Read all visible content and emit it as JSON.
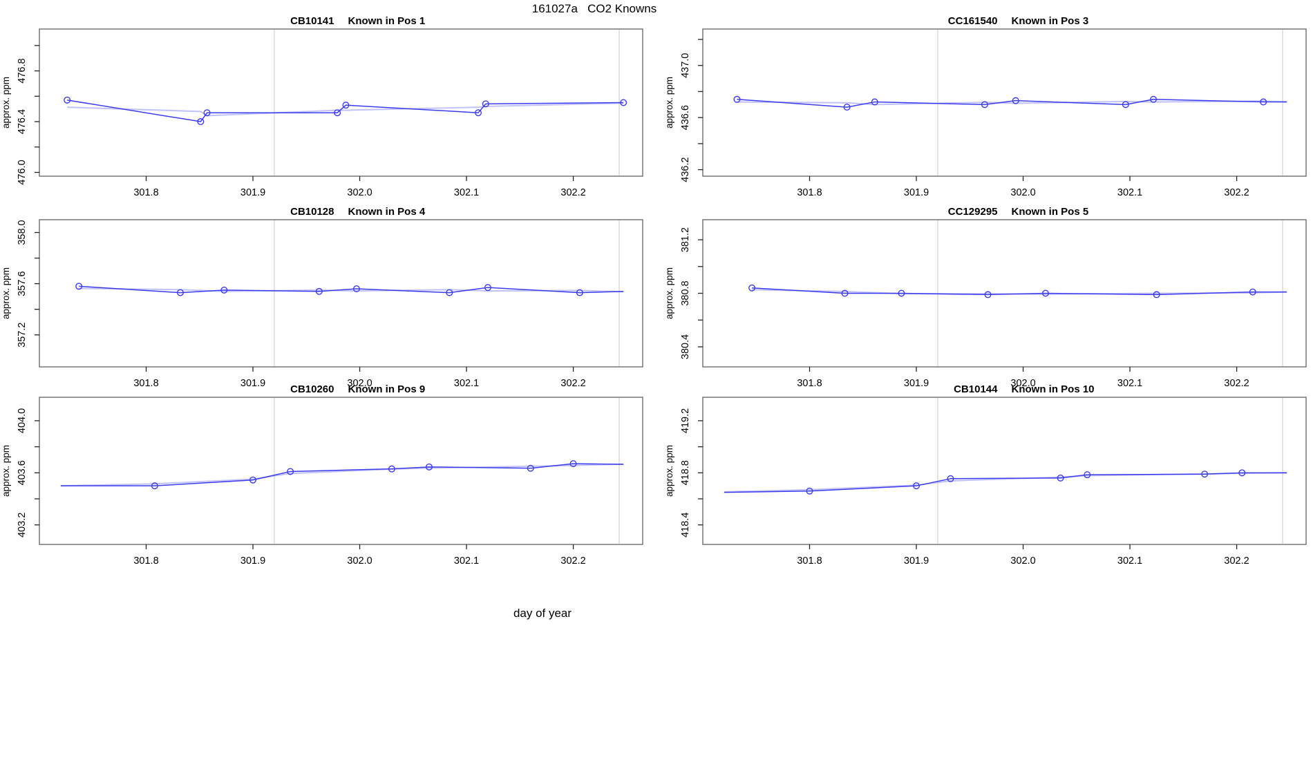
{
  "page": {
    "title": "161027a   CO2 Knowns",
    "xlabel": "day of year"
  },
  "colors": {
    "line": "#3b3bee",
    "overlay": "#9b9bf7",
    "marker": "#3b3bee",
    "vline": "#d0d0d0",
    "frame": "#6b6b6b",
    "tick": "#222222",
    "text": "#000000"
  },
  "chart_data": [
    {
      "type": "line",
      "gas_id": "CB10141",
      "position": "Known in Pos 1",
      "title": "CB10141    Known in Pos 1",
      "ylabel": "approx. ppm",
      "xlim": [
        301.7,
        302.265
      ],
      "ylim": [
        475.97,
        477.13
      ],
      "xtick_values": [
        301.8,
        301.9,
        302.0,
        302.1,
        302.2
      ],
      "xtick_labels": [
        "301.8",
        "301.9",
        "302.0",
        "302.1",
        "302.2"
      ],
      "ytick_values": [
        476.0,
        476.2,
        476.4,
        476.6,
        476.8,
        477.0
      ],
      "ytick_labeled": [
        "476.0",
        "476.4",
        "476.8"
      ],
      "vlines": [
        301.92,
        302.243
      ],
      "x": [
        301.726,
        301.851,
        301.857,
        301.979,
        301.987,
        302.111,
        302.118,
        302.247
      ],
      "y": [
        476.57,
        476.4,
        476.47,
        476.47,
        476.53,
        476.47,
        476.54,
        476.55
      ],
      "line_pre": [],
      "line_post": []
    },
    {
      "type": "line",
      "gas_id": "CC161540",
      "position": "Known in Pos 3",
      "title": "CC161540    Known in Pos 3",
      "ylabel": "approx. ppm",
      "xlim": [
        301.7,
        302.265
      ],
      "ylim": [
        436.15,
        437.28
      ],
      "xtick_values": [
        301.8,
        301.9,
        302.0,
        302.1,
        302.2
      ],
      "xtick_labels": [
        "301.8",
        "301.9",
        "302.0",
        "302.1",
        "302.2"
      ],
      "ytick_values": [
        436.2,
        436.4,
        436.6,
        436.8,
        437.0,
        437.2
      ],
      "ytick_labeled": [
        "436.2",
        "436.6",
        "437.0"
      ],
      "vlines": [
        301.92,
        302.243
      ],
      "x": [
        301.732,
        301.835,
        301.861,
        301.964,
        301.993,
        302.096,
        302.122,
        302.225
      ],
      "y": [
        436.74,
        436.68,
        436.72,
        436.7,
        436.73,
        436.7,
        436.74,
        436.72
      ],
      "line_pre": [],
      "line_post": [
        [
          302.247,
          436.72
        ]
      ]
    },
    {
      "type": "line",
      "gas_id": "CB10128",
      "position": "Known in Pos 4",
      "title": "CB10128    Known in Pos 4",
      "ylabel": "approx. ppm",
      "xlim": [
        301.7,
        302.265
      ],
      "ylim": [
        356.95,
        358.1
      ],
      "xtick_values": [
        301.8,
        301.9,
        302.0,
        302.1,
        302.2
      ],
      "xtick_labels": [
        "301.8",
        "301.9",
        "302.0",
        "302.1",
        "302.2"
      ],
      "ytick_values": [
        357.2,
        357.4,
        357.6,
        357.8,
        358.0
      ],
      "ytick_labeled": [
        "357.2",
        "357.6",
        "358.0"
      ],
      "vlines": [
        301.92,
        302.243
      ],
      "x": [
        301.737,
        301.832,
        301.873,
        301.962,
        301.997,
        302.084,
        302.12,
        302.206
      ],
      "y": [
        357.58,
        357.53,
        357.55,
        357.54,
        357.56,
        357.53,
        357.57,
        357.53
      ],
      "line_pre": [],
      "line_post": [
        [
          302.247,
          357.54
        ]
      ]
    },
    {
      "type": "line",
      "gas_id": "CC129295",
      "position": "Known in Pos 5",
      "title": "CC129295    Known in Pos 5",
      "ylabel": "approx. ppm",
      "xlim": [
        301.7,
        302.265
      ],
      "ylim": [
        380.25,
        381.35
      ],
      "xtick_values": [
        301.8,
        301.9,
        302.0,
        302.1,
        302.2
      ],
      "xtick_labels": [
        "301.8",
        "301.9",
        "302.0",
        "302.1",
        "302.2"
      ],
      "ytick_values": [
        380.4,
        380.6,
        380.8,
        381.0,
        381.2
      ],
      "ytick_labeled": [
        "380.4",
        "380.8",
        "381.2"
      ],
      "vlines": [
        301.92,
        302.243
      ],
      "x": [
        301.746,
        301.833,
        301.886,
        301.967,
        302.021,
        302.125,
        302.215
      ],
      "y": [
        380.84,
        380.8,
        380.8,
        380.79,
        380.8,
        380.79,
        380.81
      ],
      "line_pre": [],
      "line_post": [
        [
          302.247,
          380.81
        ]
      ]
    },
    {
      "type": "line",
      "gas_id": "CB10260",
      "position": "Known in Pos 9",
      "title": "CB10260    Known in Pos 9",
      "ylabel": "approx. ppm",
      "xlim": [
        301.7,
        302.265
      ],
      "ylim": [
        403.05,
        404.18
      ],
      "xtick_values": [
        301.8,
        301.9,
        302.0,
        302.1,
        302.2
      ],
      "xtick_labels": [
        "301.8",
        "301.9",
        "302.0",
        "302.1",
        "302.2"
      ],
      "ytick_values": [
        403.2,
        403.4,
        403.6,
        403.8,
        404.0
      ],
      "ytick_labeled": [
        "403.2",
        "403.6",
        "404.0"
      ],
      "vlines": [
        301.92,
        302.243
      ],
      "x": [
        301.808,
        301.9,
        301.935,
        302.03,
        302.065,
        302.16,
        302.2
      ],
      "y": [
        403.5,
        403.545,
        403.61,
        403.63,
        403.645,
        403.635,
        403.67
      ],
      "line_pre": [
        [
          301.72,
          403.5
        ]
      ],
      "line_post": [
        [
          302.247,
          403.665
        ]
      ]
    },
    {
      "type": "line",
      "gas_id": "CB10144",
      "position": "Known in Pos 10",
      "title": "CB10144    Known in Pos 10",
      "ylabel": "approx. ppm",
      "xlim": [
        301.7,
        302.265
      ],
      "ylim": [
        418.25,
        419.38
      ],
      "xtick_values": [
        301.8,
        301.9,
        302.0,
        302.1,
        302.2
      ],
      "xtick_labels": [
        "301.8",
        "301.9",
        "302.0",
        "302.1",
        "302.2"
      ],
      "ytick_values": [
        418.4,
        418.6,
        418.8,
        419.0,
        419.2
      ],
      "ytick_labeled": [
        "418.4",
        "418.8",
        "419.2"
      ],
      "vlines": [
        301.92,
        302.243
      ],
      "x": [
        301.8,
        301.9,
        301.932,
        302.035,
        302.06,
        302.17,
        302.205
      ],
      "y": [
        418.66,
        418.7,
        418.755,
        418.76,
        418.785,
        418.79,
        418.8
      ],
      "line_pre": [
        [
          301.72,
          418.65
        ]
      ],
      "line_post": [
        [
          302.247,
          418.8
        ]
      ]
    }
  ]
}
